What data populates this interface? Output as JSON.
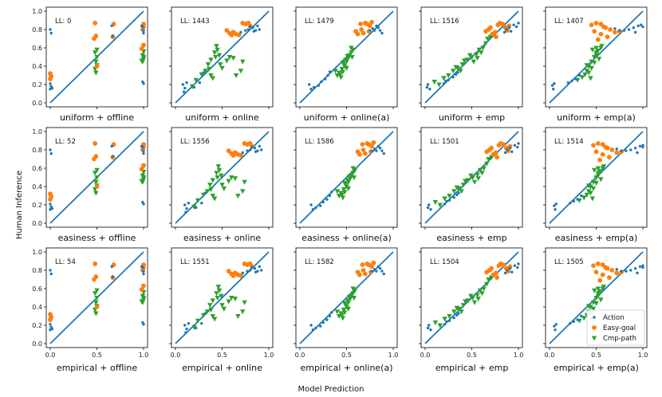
{
  "figure": {
    "xlabel": "Model Prediction",
    "ylabel": "Human Inference"
  },
  "chart_data": {
    "type": "scatter",
    "rows": 3,
    "cols": 5,
    "xlim": [
      0,
      1
    ],
    "ylim": [
      0,
      1
    ],
    "xticks": [
      "0.0",
      "0.5",
      "1.0"
    ],
    "yticks": [
      "0.0",
      "0.2",
      "0.4",
      "0.6",
      "0.8",
      "1.0"
    ],
    "reference_line": "identity y = x",
    "legend": {
      "placement": "lower-right of last panel",
      "entries": [
        {
          "name": "Action",
          "marker": "dot",
          "color": "#1f77b4"
        },
        {
          "name": "Easy-goal",
          "marker": "circle",
          "color": "#ff7f0e"
        },
        {
          "name": "Cmp-path",
          "marker": "triangle-down",
          "color": "#2ca02c"
        }
      ]
    },
    "panels": [
      {
        "title": "uniform + offline",
        "ll": "LL: 0",
        "kind": "offline",
        "shift": 0
      },
      {
        "title": "uniform + online",
        "ll": "LL: 1443",
        "kind": "online",
        "shift": 0
      },
      {
        "title": "uniform + online(a)",
        "ll": "LL: 1479",
        "kind": "onlinea",
        "shift": 0
      },
      {
        "title": "uniform + emp",
        "ll": "LL: 1516",
        "kind": "emp",
        "shift": 0
      },
      {
        "title": "uniform + emp(a)",
        "ll": "LL: 1407",
        "kind": "empa",
        "shift": 0
      },
      {
        "title": "easiness + offline",
        "ll": "LL: 52",
        "kind": "offline",
        "shift": 0
      },
      {
        "title": "easiness + online",
        "ll": "LL: 1556",
        "kind": "online",
        "shift": 0.02
      },
      {
        "title": "easiness + online(a)",
        "ll": "LL: 1586",
        "kind": "onlinea",
        "shift": 0.02
      },
      {
        "title": "easiness + emp",
        "ll": "LL: 1501",
        "kind": "emp",
        "shift": 0.01
      },
      {
        "title": "easiness + emp(a)",
        "ll": "LL: 1514",
        "kind": "empa",
        "shift": 0.02
      },
      {
        "title": "empirical + offline",
        "ll": "LL: 54",
        "kind": "offline",
        "shift": 0
      },
      {
        "title": "empirical + online",
        "ll": "LL: 1551",
        "kind": "online",
        "shift": 0.02
      },
      {
        "title": "empirical + online(a)",
        "ll": "LL: 1582",
        "kind": "onlinea",
        "shift": 0.02
      },
      {
        "title": "empirical + emp",
        "ll": "LL: 1504",
        "kind": "emp",
        "shift": 0.01
      },
      {
        "title": "empirical + emp(a)",
        "ll": "LL: 1505",
        "kind": "empa",
        "shift": 0.02
      }
    ],
    "series_by_kind": {
      "offline": {
        "Action": [
          [
            0.0,
            0.8
          ],
          [
            0.01,
            0.76
          ],
          [
            0.0,
            0.15
          ],
          [
            0.01,
            0.18
          ],
          [
            0.0,
            0.21
          ],
          [
            0.02,
            0.16
          ],
          [
            0.66,
            0.84
          ],
          [
            0.67,
            0.73
          ],
          [
            1.0,
            0.79
          ],
          [
            0.99,
            0.83
          ],
          [
            1.0,
            0.21
          ],
          [
            0.99,
            0.23
          ],
          [
            0.98,
            0.84
          ],
          [
            1.0,
            0.76
          ]
        ],
        "Easy-goal": [
          [
            0.0,
            0.32
          ],
          [
            0.0,
            0.26
          ],
          [
            0.01,
            0.29
          ],
          [
            0.48,
            0.87
          ],
          [
            0.49,
            0.73
          ],
          [
            0.47,
            0.7
          ],
          [
            0.5,
            0.4
          ],
          [
            0.68,
            0.86
          ],
          [
            0.67,
            0.72
          ],
          [
            1.0,
            0.86
          ],
          [
            0.99,
            0.8
          ],
          [
            1.0,
            0.63
          ],
          [
            0.98,
            0.59
          ],
          [
            1.0,
            0.83
          ]
        ],
        "Cmp-path": [
          [
            0.48,
            0.55
          ],
          [
            0.5,
            0.5
          ],
          [
            0.49,
            0.45
          ],
          [
            0.5,
            0.41
          ],
          [
            0.48,
            0.37
          ],
          [
            0.49,
            0.33
          ],
          [
            0.5,
            0.58
          ],
          [
            1.0,
            0.56
          ],
          [
            0.99,
            0.52
          ],
          [
            1.0,
            0.48
          ],
          [
            0.99,
            0.45
          ],
          [
            1.0,
            0.62
          ],
          [
            0.98,
            0.46
          ],
          [
            1.0,
            0.5
          ]
        ]
      },
      "online": {
        "Action": [
          [
            0.08,
            0.2
          ],
          [
            0.1,
            0.16
          ],
          [
            0.09,
            0.12
          ],
          [
            0.12,
            0.22
          ],
          [
            0.2,
            0.17
          ],
          [
            0.26,
            0.22
          ],
          [
            0.3,
            0.33
          ],
          [
            0.7,
            0.77
          ],
          [
            0.75,
            0.79
          ],
          [
            0.78,
            0.8
          ],
          [
            0.8,
            0.83
          ],
          [
            0.83,
            0.82
          ],
          [
            0.86,
            0.79
          ],
          [
            0.88,
            0.84
          ],
          [
            0.9,
            0.8
          ],
          [
            0.84,
            0.78
          ]
        ],
        "Easy-goal": [
          [
            0.55,
            0.79
          ],
          [
            0.58,
            0.76
          ],
          [
            0.6,
            0.74
          ],
          [
            0.62,
            0.77
          ],
          [
            0.65,
            0.75
          ],
          [
            0.68,
            0.74
          ],
          [
            0.72,
            0.87
          ],
          [
            0.75,
            0.86
          ],
          [
            0.78,
            0.87
          ],
          [
            0.8,
            0.84
          ],
          [
            0.63,
            0.76
          ]
        ],
        "Cmp-path": [
          [
            0.18,
            0.18
          ],
          [
            0.22,
            0.25
          ],
          [
            0.28,
            0.31
          ],
          [
            0.32,
            0.35
          ],
          [
            0.35,
            0.42
          ],
          [
            0.38,
            0.47
          ],
          [
            0.42,
            0.55
          ],
          [
            0.45,
            0.58
          ],
          [
            0.47,
            0.52
          ],
          [
            0.43,
            0.5
          ],
          [
            0.4,
            0.27
          ],
          [
            0.38,
            0.3
          ],
          [
            0.48,
            0.42
          ],
          [
            0.5,
            0.38
          ],
          [
            0.55,
            0.46
          ],
          [
            0.58,
            0.5
          ],
          [
            0.62,
            0.49
          ],
          [
            0.65,
            0.3
          ],
          [
            0.7,
            0.35
          ],
          [
            0.72,
            0.45
          ],
          [
            0.36,
            0.37
          ],
          [
            0.44,
            0.62
          ]
        ]
      },
      "onlinea": {
        "Action": [
          [
            0.1,
            0.2
          ],
          [
            0.12,
            0.15
          ],
          [
            0.15,
            0.17
          ],
          [
            0.2,
            0.19
          ],
          [
            0.23,
            0.23
          ],
          [
            0.27,
            0.26
          ],
          [
            0.3,
            0.3
          ],
          [
            0.32,
            0.34
          ],
          [
            0.75,
            0.79
          ],
          [
            0.78,
            0.81
          ],
          [
            0.8,
            0.79
          ],
          [
            0.84,
            0.82
          ],
          [
            0.86,
            0.79
          ],
          [
            0.88,
            0.76
          ],
          [
            0.82,
            0.84
          ]
        ],
        "Easy-goal": [
          [
            0.6,
            0.78
          ],
          [
            0.62,
            0.75
          ],
          [
            0.66,
            0.8
          ],
          [
            0.68,
            0.76
          ],
          [
            0.7,
            0.87
          ],
          [
            0.72,
            0.86
          ],
          [
            0.75,
            0.84
          ],
          [
            0.77,
            0.88
          ],
          [
            0.74,
            0.78
          ],
          [
            0.65,
            0.86
          ]
        ],
        "Cmp-path": [
          [
            0.38,
            0.35
          ],
          [
            0.4,
            0.3
          ],
          [
            0.42,
            0.33
          ],
          [
            0.44,
            0.28
          ],
          [
            0.46,
            0.34
          ],
          [
            0.48,
            0.4
          ],
          [
            0.5,
            0.45
          ],
          [
            0.52,
            0.49
          ],
          [
            0.55,
            0.55
          ],
          [
            0.57,
            0.58
          ],
          [
            0.53,
            0.52
          ],
          [
            0.49,
            0.47
          ],
          [
            0.45,
            0.37
          ],
          [
            0.47,
            0.42
          ],
          [
            0.51,
            0.51
          ],
          [
            0.43,
            0.31
          ],
          [
            0.55,
            0.6
          ],
          [
            0.5,
            0.38
          ],
          [
            0.46,
            0.44
          ],
          [
            0.56,
            0.5
          ]
        ]
      },
      "emp": {
        "Action": [
          [
            0.02,
            0.17
          ],
          [
            0.03,
            0.2
          ],
          [
            0.05,
            0.15
          ],
          [
            0.2,
            0.21
          ],
          [
            0.22,
            0.24
          ],
          [
            0.25,
            0.25
          ],
          [
            0.3,
            0.28
          ],
          [
            0.33,
            0.31
          ],
          [
            0.35,
            0.33
          ],
          [
            0.87,
            0.8
          ],
          [
            0.9,
            0.82
          ],
          [
            0.95,
            0.85
          ],
          [
            0.98,
            0.83
          ],
          [
            1.0,
            0.87
          ],
          [
            0.92,
            0.78
          ],
          [
            0.85,
            0.77
          ]
        ],
        "Easy-goal": [
          [
            0.65,
            0.78
          ],
          [
            0.68,
            0.8
          ],
          [
            0.7,
            0.82
          ],
          [
            0.72,
            0.75
          ],
          [
            0.75,
            0.77
          ],
          [
            0.78,
            0.85
          ],
          [
            0.8,
            0.87
          ],
          [
            0.83,
            0.86
          ],
          [
            0.86,
            0.82
          ],
          [
            0.88,
            0.79
          ],
          [
            0.9,
            0.84
          ],
          [
            0.76,
            0.72
          ]
        ],
        "Cmp-path": [
          [
            0.1,
            0.23
          ],
          [
            0.15,
            0.2
          ],
          [
            0.2,
            0.27
          ],
          [
            0.25,
            0.3
          ],
          [
            0.3,
            0.35
          ],
          [
            0.35,
            0.38
          ],
          [
            0.4,
            0.42
          ],
          [
            0.45,
            0.47
          ],
          [
            0.5,
            0.5
          ],
          [
            0.55,
            0.53
          ],
          [
            0.6,
            0.55
          ],
          [
            0.62,
            0.6
          ],
          [
            0.65,
            0.65
          ],
          [
            0.7,
            0.72
          ],
          [
            0.48,
            0.52
          ],
          [
            0.52,
            0.45
          ],
          [
            0.42,
            0.46
          ],
          [
            0.58,
            0.58
          ],
          [
            0.38,
            0.35
          ],
          [
            0.33,
            0.39
          ],
          [
            0.67,
            0.7
          ],
          [
            0.56,
            0.49
          ]
        ]
      },
      "empa": {
        "Action": [
          [
            0.03,
            0.19
          ],
          [
            0.04,
            0.15
          ],
          [
            0.05,
            0.21
          ],
          [
            0.2,
            0.22
          ],
          [
            0.24,
            0.24
          ],
          [
            0.28,
            0.26
          ],
          [
            0.32,
            0.3
          ],
          [
            0.7,
            0.81
          ],
          [
            0.75,
            0.79
          ],
          [
            0.8,
            0.79
          ],
          [
            0.85,
            0.8
          ],
          [
            0.9,
            0.82
          ],
          [
            0.95,
            0.84
          ],
          [
            0.98,
            0.85
          ],
          [
            1.0,
            0.83
          ],
          [
            0.92,
            0.77
          ]
        ],
        "Easy-goal": [
          [
            0.45,
            0.85
          ],
          [
            0.5,
            0.87
          ],
          [
            0.55,
            0.86
          ],
          [
            0.6,
            0.82
          ],
          [
            0.65,
            0.8
          ],
          [
            0.48,
            0.78
          ],
          [
            0.55,
            0.75
          ],
          [
            0.62,
            0.72
          ],
          [
            0.7,
            0.77
          ],
          [
            0.75,
            0.78
          ],
          [
            0.52,
            0.69
          ],
          [
            0.58,
            0.83
          ]
        ],
        "Cmp-path": [
          [
            0.3,
            0.25
          ],
          [
            0.35,
            0.28
          ],
          [
            0.38,
            0.31
          ],
          [
            0.4,
            0.35
          ],
          [
            0.42,
            0.4
          ],
          [
            0.45,
            0.45
          ],
          [
            0.48,
            0.5
          ],
          [
            0.5,
            0.55
          ],
          [
            0.52,
            0.57
          ],
          [
            0.55,
            0.6
          ],
          [
            0.48,
            0.44
          ],
          [
            0.45,
            0.38
          ],
          [
            0.42,
            0.33
          ],
          [
            0.5,
            0.52
          ],
          [
            0.53,
            0.48
          ],
          [
            0.46,
            0.58
          ],
          [
            0.56,
            0.62
          ],
          [
            0.44,
            0.27
          ],
          [
            0.4,
            0.41
          ],
          [
            0.5,
            0.6
          ]
        ]
      }
    }
  }
}
